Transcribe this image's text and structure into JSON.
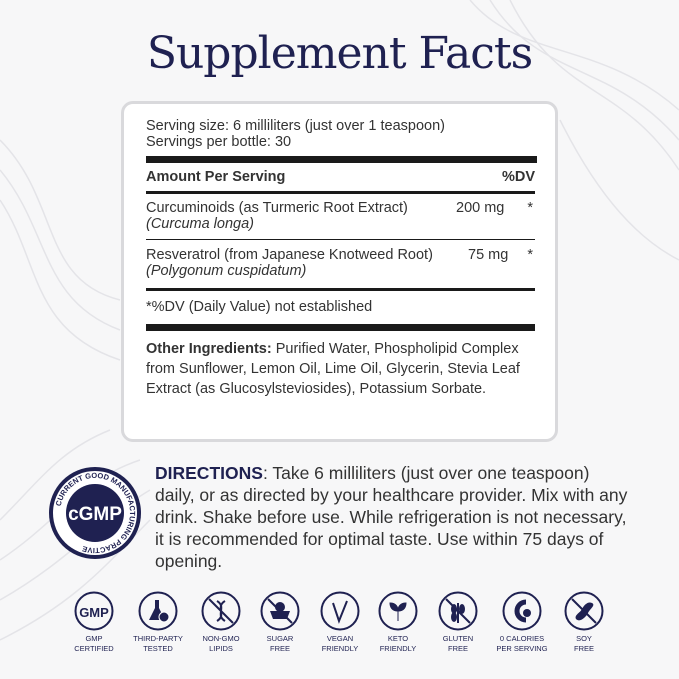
{
  "title": "Supplement Facts",
  "facts": {
    "serving_size": "Serving size: 6 milliliters (just over 1 teaspoon)",
    "servings": "Servings per bottle: 30",
    "header_amount": "Amount Per Serving",
    "header_dv": "%DV",
    "items": [
      {
        "name": "Curcuminoids (as Turmeric Root Extract)",
        "latin": "(Curcuma longa)",
        "amount": "200 mg",
        "dv": "*"
      },
      {
        "name": "Resveratrol (from Japanese Knotweed Root)",
        "latin": "(Polygonum cuspidatum)",
        "amount": "75 mg",
        "dv": "*"
      }
    ],
    "footnote": "*%DV (Daily Value) not established",
    "other_label": "Other Ingredients:",
    "other_text": " Purified Water, Phospholipid Complex from Sunflower, Lemon Oil, Lime Oil, Glycerin, Stevia Leaf Extract (as Glucosylsteviosides), Potassium Sorbate."
  },
  "directions": {
    "label": "DIRECTIONS",
    "text": ": Take 6 milliliters  (just over one teaspoon) daily, or as directed by your healthcare provider. Mix with any drink. Shake before use. While refrigeration is not necessary, it is recommended for optimal taste. Use within 75 days of opening."
  },
  "badge": {
    "center": "cGMP",
    "ring": "CURRENT GOOD MANUFACTURING PRACTIVE"
  },
  "icons": [
    {
      "icon": "gmp-icon",
      "l1": "GMP",
      "l2": "CERTIFIED"
    },
    {
      "icon": "flask-check-icon",
      "l1": "THIRD-PARTY",
      "l2": "TESTED"
    },
    {
      "icon": "no-dna-icon",
      "l1": "NON-GMO",
      "l2": "LIPIDS"
    },
    {
      "icon": "no-sugar-icon",
      "l1": "SUGAR",
      "l2": "FREE"
    },
    {
      "icon": "vegan-icon",
      "l1": "VEGAN",
      "l2": "FRIENDLY"
    },
    {
      "icon": "keto-leaf-icon",
      "l1": "KETO",
      "l2": "FRIENDLY"
    },
    {
      "icon": "no-gluten-icon",
      "l1": "GLUTEN",
      "l2": "FREE"
    },
    {
      "icon": "zero-calorie-icon",
      "l1": "0 CALORIES",
      "l2": "PER SERVING"
    },
    {
      "icon": "no-soy-icon",
      "l1": "SOY",
      "l2": "FREE"
    }
  ],
  "colors": {
    "navy": "#1f2151",
    "background": "#f7f7f8"
  }
}
